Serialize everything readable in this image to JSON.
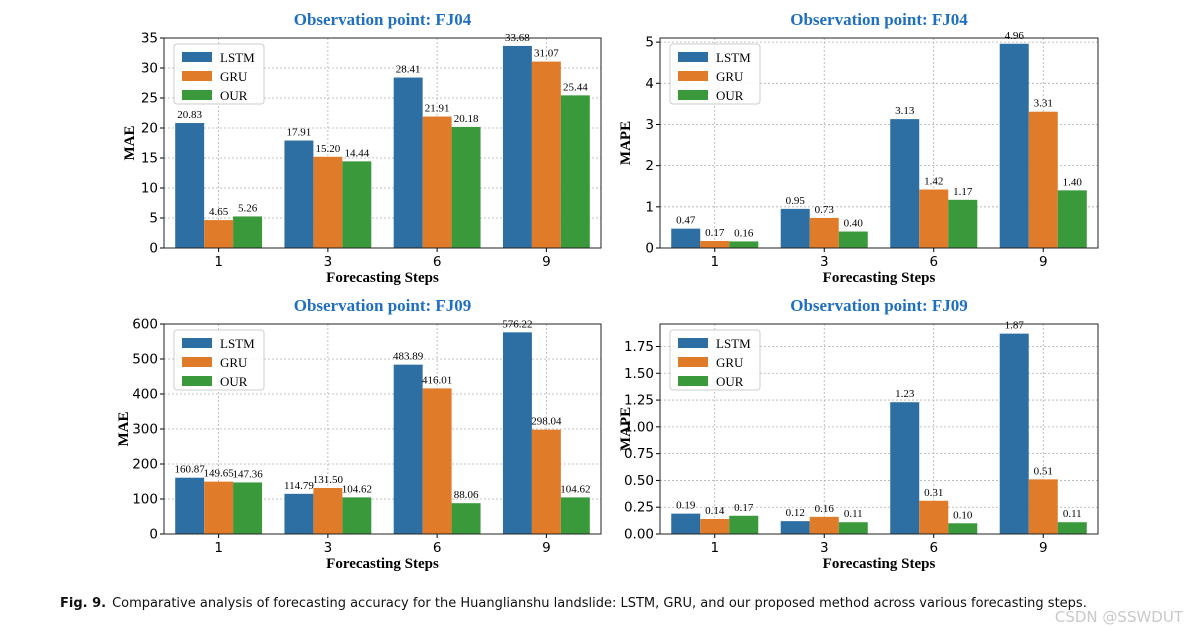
{
  "colors": {
    "title": "#1f6fc1",
    "lstm": "#2e6fa3",
    "gru": "#e07b2a",
    "our": "#3a993a",
    "grid": "#b0b0b0",
    "frame": "#222222"
  },
  "caption": {
    "label": "Fig. 9.",
    "text": "Comparative analysis of forecasting accuracy for the Huanglianshu landslide: LSTM, GRU, and our proposed method across various forecasting steps."
  },
  "watermark": "CSDN @SSWDUT",
  "chart_data": [
    {
      "type": "bar",
      "title": "Observation point: FJ04",
      "xlabel": "Forecasting Steps",
      "ylabel": "MAE",
      "categories": [
        "1",
        "3",
        "6",
        "9"
      ],
      "ylim": [
        0,
        35
      ],
      "yticks": [
        0,
        5,
        10,
        15,
        20,
        25,
        30,
        35
      ],
      "ytick_labels": [
        "0",
        "5",
        "10",
        "15",
        "20",
        "25",
        "30",
        "35"
      ],
      "grid": true,
      "legend": "top-left",
      "series": [
        {
          "name": "LSTM",
          "values": [
            20.83,
            17.91,
            28.41,
            33.68
          ],
          "labels": [
            "20.83",
            "17.91",
            "28.41",
            "33.68"
          ]
        },
        {
          "name": "GRU",
          "values": [
            4.65,
            15.2,
            21.91,
            31.07
          ],
          "labels": [
            "4.65",
            "15.20",
            "21.91",
            "31.07"
          ]
        },
        {
          "name": "OUR",
          "values": [
            5.26,
            14.44,
            20.18,
            25.44
          ],
          "labels": [
            "5.26",
            "14.44",
            "20.18",
            "25.44"
          ]
        }
      ]
    },
    {
      "type": "bar",
      "title": "Observation point: FJ04",
      "xlabel": "Forecasting Steps",
      "ylabel": "MAPE",
      "categories": [
        "1",
        "3",
        "6",
        "9"
      ],
      "ylim": [
        0,
        5.1
      ],
      "yticks": [
        0,
        1,
        2,
        3,
        4,
        5
      ],
      "ytick_labels": [
        "0",
        "1",
        "2",
        "3",
        "4",
        "5"
      ],
      "grid": true,
      "legend": "top-left",
      "series": [
        {
          "name": "LSTM",
          "values": [
            0.47,
            0.95,
            3.13,
            4.96
          ],
          "labels": [
            "0.47",
            "0.95",
            "3.13",
            "4.96"
          ]
        },
        {
          "name": "GRU",
          "values": [
            0.17,
            0.73,
            1.42,
            3.31
          ],
          "labels": [
            "0.17",
            "0.73",
            "1.42",
            "3.31"
          ]
        },
        {
          "name": "OUR",
          "values": [
            0.16,
            0.4,
            1.17,
            1.4
          ],
          "labels": [
            "0.16",
            "0.40",
            "1.17",
            "1.40"
          ]
        }
      ]
    },
    {
      "type": "bar",
      "title": "Observation point: FJ09",
      "xlabel": "Forecasting Steps",
      "ylabel": "MAE",
      "categories": [
        "1",
        "3",
        "6",
        "9"
      ],
      "ylim": [
        0,
        600
      ],
      "yticks": [
        0,
        100,
        200,
        300,
        400,
        500,
        600
      ],
      "ytick_labels": [
        "0",
        "100",
        "200",
        "300",
        "400",
        "500",
        "600"
      ],
      "grid": true,
      "legend": "top-left",
      "series": [
        {
          "name": "LSTM",
          "values": [
            160.87,
            114.79,
            483.89,
            576.22
          ],
          "labels": [
            "160.87",
            "114.79",
            "483.89",
            "576.22"
          ]
        },
        {
          "name": "GRU",
          "values": [
            149.65,
            131.5,
            416.01,
            298.04
          ],
          "labels": [
            "149.65",
            "131.50",
            "416.01",
            "298.04"
          ]
        },
        {
          "name": "OUR",
          "values": [
            147.36,
            104.62,
            88.06,
            104.62
          ],
          "labels": [
            "147.36",
            "104.62",
            "88.06",
            "104.62"
          ]
        }
      ]
    },
    {
      "type": "bar",
      "title": "Observation point: FJ09",
      "xlabel": "Forecasting Steps",
      "ylabel": "MAPE",
      "categories": [
        "1",
        "3",
        "6",
        "9"
      ],
      "ylim": [
        0,
        1.96
      ],
      "yticks": [
        0,
        0.25,
        0.5,
        0.75,
        1.0,
        1.25,
        1.5,
        1.75
      ],
      "ytick_labels": [
        "0.00",
        "0.25",
        "0.50",
        "0.75",
        "1.00",
        "1.25",
        "1.50",
        "1.75"
      ],
      "grid": true,
      "legend": "top-left",
      "series": [
        {
          "name": "LSTM",
          "values": [
            0.19,
            0.12,
            1.23,
            1.87
          ],
          "labels": [
            "0.19",
            "0.12",
            "1.23",
            "1.87"
          ]
        },
        {
          "name": "GRU",
          "values": [
            0.14,
            0.16,
            0.31,
            0.51
          ],
          "labels": [
            "0.14",
            "0.16",
            "0.31",
            "0.51"
          ]
        },
        {
          "name": "OUR",
          "values": [
            0.17,
            0.11,
            0.1,
            0.11
          ],
          "labels": [
            "0.17",
            "0.11",
            "0.10",
            "0.11"
          ]
        }
      ]
    }
  ]
}
